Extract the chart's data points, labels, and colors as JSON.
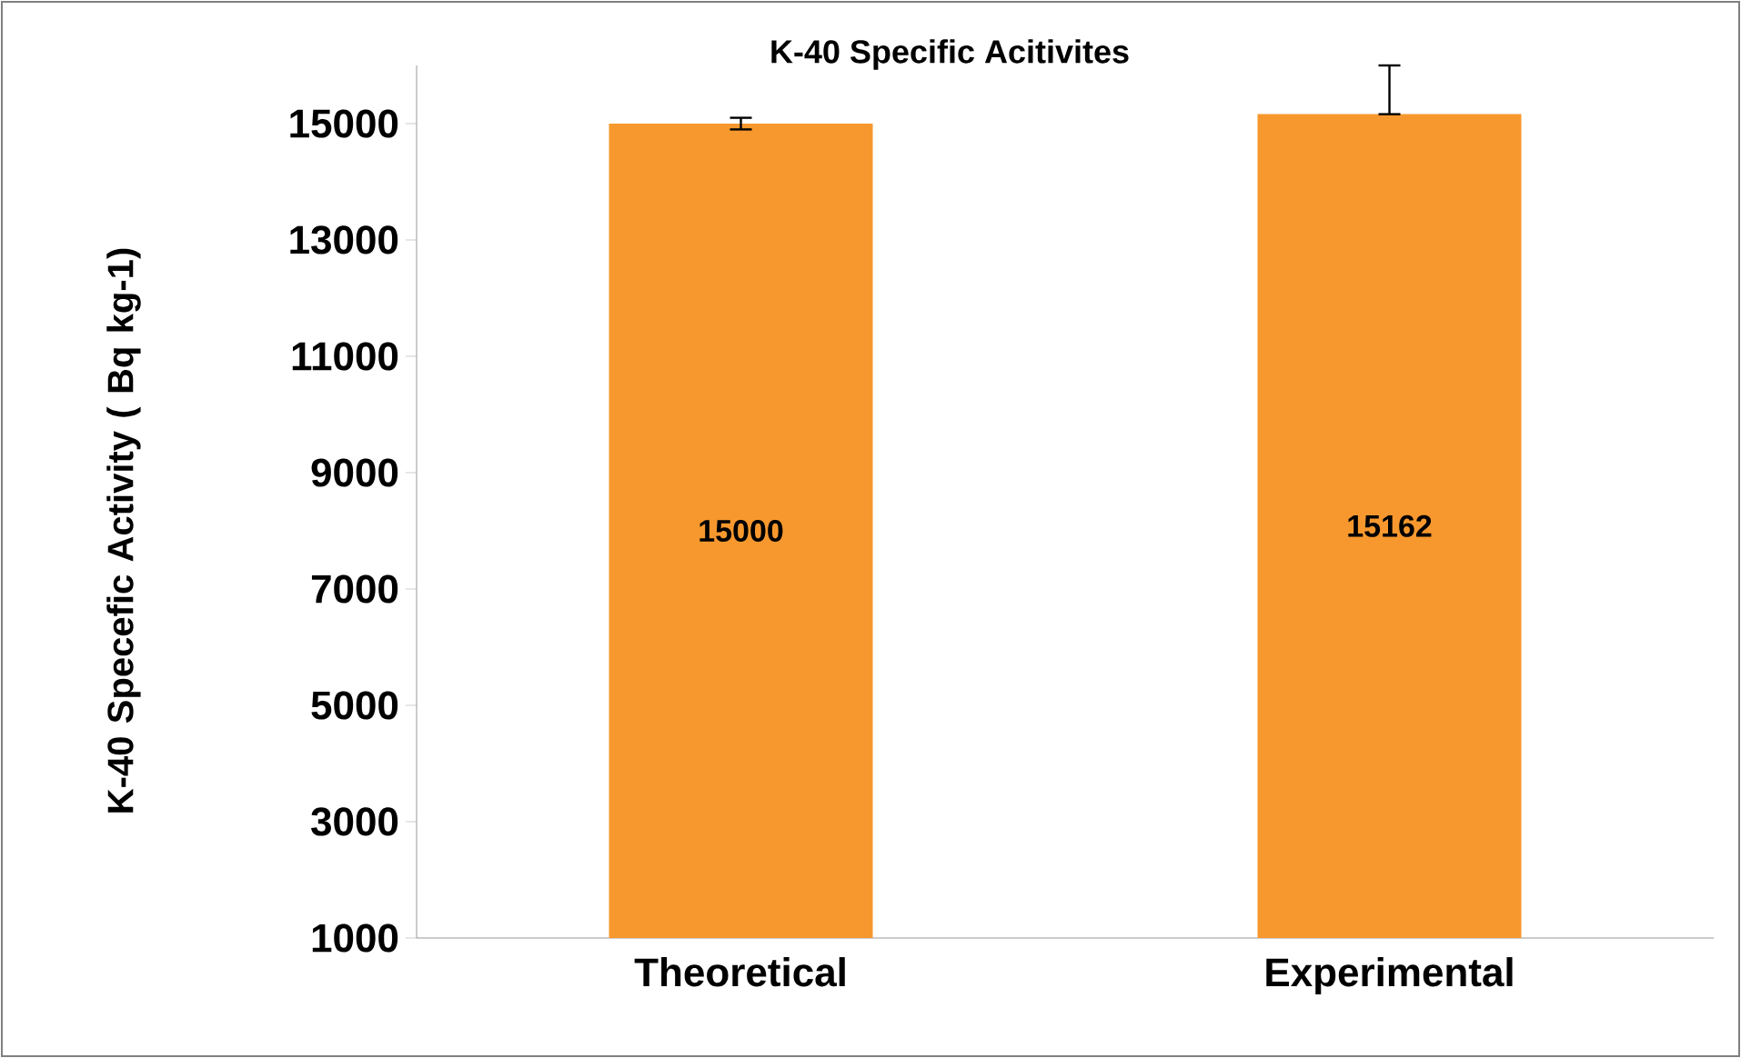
{
  "chart_data": {
    "type": "bar",
    "title": "K-40 Specific Acitivites",
    "ylabel": "K-40 Specefic Activity  ( Bq kg-1)",
    "categories": [
      "Theoretical",
      "Experimental"
    ],
    "values": [
      15000,
      15162
    ],
    "errors": [
      100,
      [
        15162,
        16000
      ]
    ],
    "color": "#f7982e",
    "ylim": [
      1000,
      16000
    ],
    "yticks": [
      1000,
      3000,
      5000,
      7000,
      9000,
      11000,
      13000,
      15000
    ],
    "data_labels": true
  }
}
